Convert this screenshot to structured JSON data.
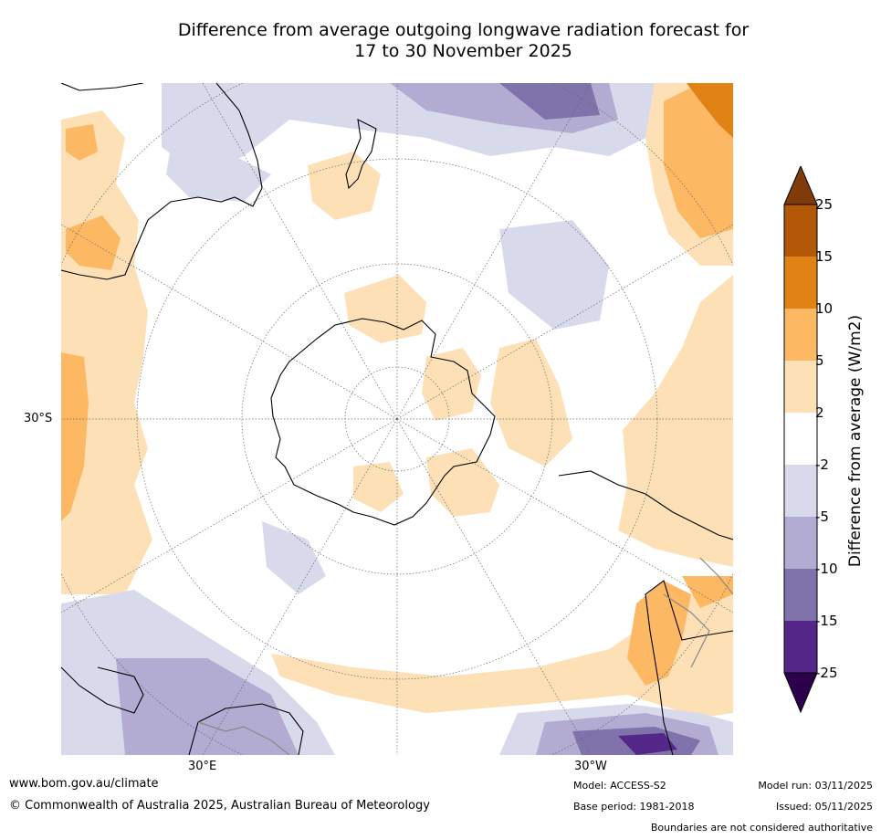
{
  "title_line1": "Difference from average outgoing longwave radiation forecast for",
  "title_line2": "17 to 30 November 2025",
  "map": {
    "projection": "South polar stereographic",
    "latitude_label": "30°S",
    "longitude_labels": [
      "30°E",
      "30°W"
    ],
    "landmasses": [
      "Antarctica",
      "Australia",
      "New Zealand",
      "South America",
      "Africa"
    ],
    "colors": {
      "land_outline": "#000000",
      "boundary_grey": "#888888",
      "graticule": "#666666"
    }
  },
  "colorbar": {
    "label": "Difference from average (W/m2)",
    "ticks": [
      "25",
      "15",
      "10",
      "5",
      "2",
      "-2",
      "-5",
      "-10",
      "-15",
      "-25"
    ],
    "bins": [
      {
        "range": ">25",
        "color": "#7f3b08"
      },
      {
        "range": "15 to 25",
        "color": "#b35806"
      },
      {
        "range": "10 to 15",
        "color": "#e08214"
      },
      {
        "range": "5 to 10",
        "color": "#fdb863"
      },
      {
        "range": "2 to 5",
        "color": "#fee0b6"
      },
      {
        "range": "-2 to 2",
        "color": "#ffffff"
      },
      {
        "range": "-5 to -2",
        "color": "#d8daeb"
      },
      {
        "range": "-10 to -5",
        "color": "#b2abd2"
      },
      {
        "range": "-15 to -10",
        "color": "#8073ac"
      },
      {
        "range": "-25 to -15",
        "color": "#542788"
      },
      {
        "range": "<-25",
        "color": "#2d004b"
      }
    ]
  },
  "footer": {
    "website": "www.bom.gov.au/climate",
    "copyright": "© Commonwealth of Australia 2025, Australian Bureau of Meteorology",
    "model": "Model: ACCESS-S2",
    "base_period": "Base period: 1981-2018",
    "model_run": "Model run: 03/11/2025",
    "issued": "Issued: 05/11/2025",
    "disclaimer": "Boundaries are not considered authoritative"
  }
}
